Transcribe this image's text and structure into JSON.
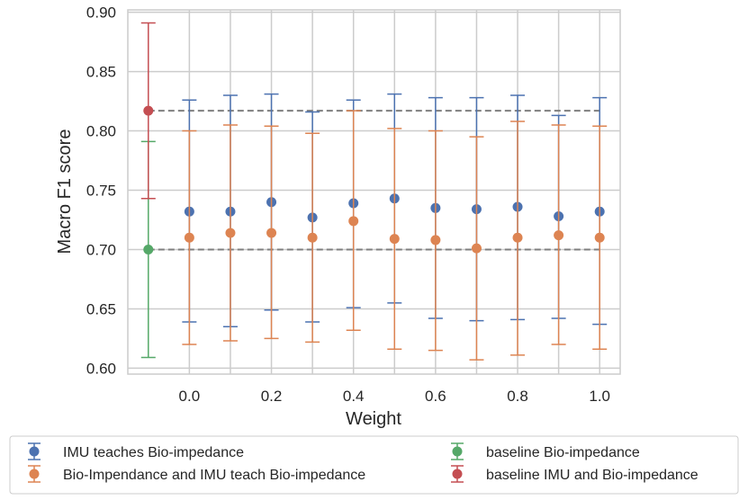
{
  "chart_data": {
    "type": "scatter",
    "title": "",
    "xlabel": "Weight",
    "ylabel": "Macro F1 score",
    "xlim": [
      -0.15,
      1.05
    ],
    "ylim": [
      0.595,
      0.902
    ],
    "grid": true,
    "legend_position": "bottom",
    "x_ticks": [
      {
        "value": 0.0,
        "label": "0.0"
      },
      {
        "value": 0.2,
        "label": "0.2"
      },
      {
        "value": 0.4,
        "label": "0.4"
      },
      {
        "value": 0.6,
        "label": "0.6"
      },
      {
        "value": 0.8,
        "label": "0.8"
      },
      {
        "value": 1.0,
        "label": "1.0"
      }
    ],
    "x_grid": [
      0.0,
      0.1,
      0.2,
      0.3,
      0.4,
      0.5,
      0.6,
      0.7,
      0.8,
      0.9,
      1.0
    ],
    "y_ticks": [
      {
        "value": 0.6,
        "label": "0.60"
      },
      {
        "value": 0.65,
        "label": "0.65"
      },
      {
        "value": 0.7,
        "label": "0.70"
      },
      {
        "value": 0.75,
        "label": "0.75"
      },
      {
        "value": 0.8,
        "label": "0.80"
      },
      {
        "value": 0.85,
        "label": "0.85"
      },
      {
        "value": 0.9,
        "label": "0.90"
      }
    ],
    "reference_lines": [
      {
        "y": 0.817,
        "x_from": -0.1,
        "x_to": 1.0,
        "color": "#7f7f7f",
        "style": "dashed"
      },
      {
        "y": 0.7,
        "x_from": -0.1,
        "x_to": 1.0,
        "color": "#7f7f7f",
        "style": "dashed"
      }
    ],
    "series": [
      {
        "name": "IMU teaches Bio-impedance",
        "color": "#4c72b0",
        "points": [
          {
            "x": 0.0,
            "y": 0.732,
            "low": 0.639,
            "high": 0.826
          },
          {
            "x": 0.1,
            "y": 0.732,
            "low": 0.635,
            "high": 0.83
          },
          {
            "x": 0.2,
            "y": 0.74,
            "low": 0.649,
            "high": 0.831
          },
          {
            "x": 0.3,
            "y": 0.727,
            "low": 0.639,
            "high": 0.816
          },
          {
            "x": 0.4,
            "y": 0.739,
            "low": 0.651,
            "high": 0.826
          },
          {
            "x": 0.5,
            "y": 0.743,
            "low": 0.655,
            "high": 0.831
          },
          {
            "x": 0.6,
            "y": 0.735,
            "low": 0.642,
            "high": 0.828
          },
          {
            "x": 0.7,
            "y": 0.734,
            "low": 0.64,
            "high": 0.828
          },
          {
            "x": 0.8,
            "y": 0.736,
            "low": 0.641,
            "high": 0.83
          },
          {
            "x": 0.9,
            "y": 0.728,
            "low": 0.642,
            "high": 0.813
          },
          {
            "x": 1.0,
            "y": 0.732,
            "low": 0.637,
            "high": 0.828
          }
        ]
      },
      {
        "name": "Bio-Impendance and IMU teach Bio-impedance",
        "color": "#dd8452",
        "points": [
          {
            "x": 0.0,
            "y": 0.71,
            "low": 0.62,
            "high": 0.8
          },
          {
            "x": 0.1,
            "y": 0.714,
            "low": 0.623,
            "high": 0.805
          },
          {
            "x": 0.2,
            "y": 0.714,
            "low": 0.625,
            "high": 0.804
          },
          {
            "x": 0.3,
            "y": 0.71,
            "low": 0.622,
            "high": 0.798
          },
          {
            "x": 0.4,
            "y": 0.724,
            "low": 0.632,
            "high": 0.817
          },
          {
            "x": 0.5,
            "y": 0.709,
            "low": 0.616,
            "high": 0.802
          },
          {
            "x": 0.6,
            "y": 0.708,
            "low": 0.615,
            "high": 0.8
          },
          {
            "x": 0.7,
            "y": 0.701,
            "low": 0.607,
            "high": 0.795
          },
          {
            "x": 0.8,
            "y": 0.71,
            "low": 0.611,
            "high": 0.808
          },
          {
            "x": 0.9,
            "y": 0.712,
            "low": 0.62,
            "high": 0.805
          },
          {
            "x": 1.0,
            "y": 0.71,
            "low": 0.616,
            "high": 0.804
          }
        ]
      },
      {
        "name": "baseline Bio-impedance",
        "color": "#55a868",
        "points": [
          {
            "x": -0.1,
            "y": 0.7,
            "low": 0.609,
            "high": 0.791
          }
        ]
      },
      {
        "name": "baseline IMU and Bio-impedance",
        "color": "#c44e52",
        "points": [
          {
            "x": -0.1,
            "y": 0.817,
            "low": 0.743,
            "high": 0.891
          }
        ]
      }
    ],
    "legend": [
      {
        "label": "IMU teaches Bio-impedance",
        "color": "#4c72b0"
      },
      {
        "label": "Bio-Impendance and IMU teach Bio-impedance",
        "color": "#dd8452"
      },
      {
        "label": "baseline Bio-impedance",
        "color": "#55a868"
      },
      {
        "label": "baseline IMU and Bio-impedance",
        "color": "#c44e52"
      }
    ]
  }
}
